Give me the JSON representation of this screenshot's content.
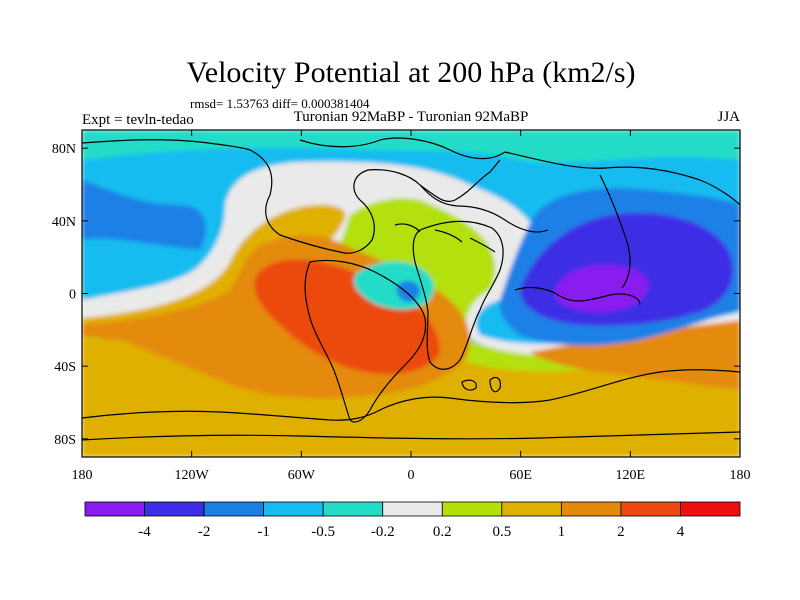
{
  "chart_data": {
    "type": "heatmap",
    "title": "Velocity Potential at 200 hPa (km2/s)",
    "stats_line": "rmsd= 1.53763 diff= 0.000381404",
    "left_label": "Expt = tevln-tedao",
    "center_label": "Turonian  92MaBP - Turonian  92MaBP",
    "right_label": "JJA",
    "xlim": [
      -180,
      180
    ],
    "ylim": [
      -90,
      90
    ],
    "x_ticks": [
      {
        "value": -180,
        "label": "180"
      },
      {
        "value": -120,
        "label": "120W"
      },
      {
        "value": -60,
        "label": "60W"
      },
      {
        "value": 0,
        "label": "0"
      },
      {
        "value": 60,
        "label": "60E"
      },
      {
        "value": 120,
        "label": "120E"
      },
      {
        "value": 180,
        "label": "180"
      }
    ],
    "y_ticks": [
      {
        "value": 80,
        "label": "80N"
      },
      {
        "value": 40,
        "label": "40N"
      },
      {
        "value": 0,
        "label": "0"
      },
      {
        "value": -40,
        "label": "40S"
      },
      {
        "value": -80,
        "label": "80S"
      }
    ],
    "colorbar": {
      "levels": [
        "-4",
        "-2",
        "-1",
        "-0.5",
        "-0.2",
        "0.2",
        "0.5",
        "1",
        "2",
        "4"
      ],
      "colors": [
        "#8a1cf0",
        "#3c2ee6",
        "#1a80e6",
        "#18bcf0",
        "#24dcc8",
        "#eaeaea",
        "#b4e00a",
        "#e0b000",
        "#e48a0a",
        "#ec4a10",
        "#ee1010"
      ]
    },
    "regions": [
      {
        "name": "strong-negative-core",
        "level": "< -4",
        "center": [
          100,
          0
        ]
      },
      {
        "name": "negative-center-indian-pacific",
        "level": "-4 to -2",
        "center": [
          110,
          10
        ]
      },
      {
        "name": "positive-max-south-america",
        "level": "2 to 4",
        "center": [
          -65,
          0
        ]
      },
      {
        "name": "positive-southern-ocean",
        "level": "0.5 to 1",
        "center": [
          0,
          -65
        ]
      }
    ],
    "continents_note": "Cretaceous (Turonian 92 Ma) paleogeography outlines"
  }
}
